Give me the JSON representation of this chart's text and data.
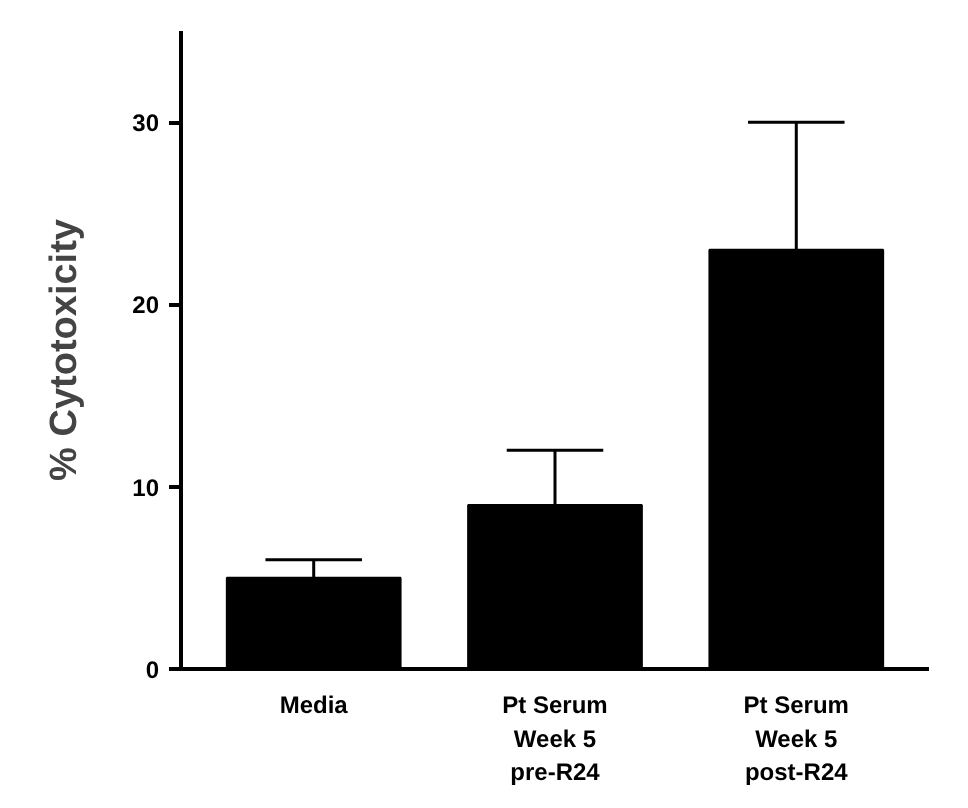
{
  "chart_data": {
    "type": "bar",
    "ylabel": "% Cytotoxicity",
    "categories": [
      "Media",
      "Pt Serum\nWeek 5\npre-R24",
      "Pt Serum\nWeek 5\npost-R24"
    ],
    "values": [
      5,
      9,
      23
    ],
    "errors": [
      [
        5,
        6
      ],
      [
        9,
        12
      ],
      [
        23,
        30
      ]
    ],
    "color": "#000000",
    "ylim": [
      0,
      35
    ],
    "yticks": [
      0,
      10,
      20,
      30
    ],
    "grid": false
  }
}
